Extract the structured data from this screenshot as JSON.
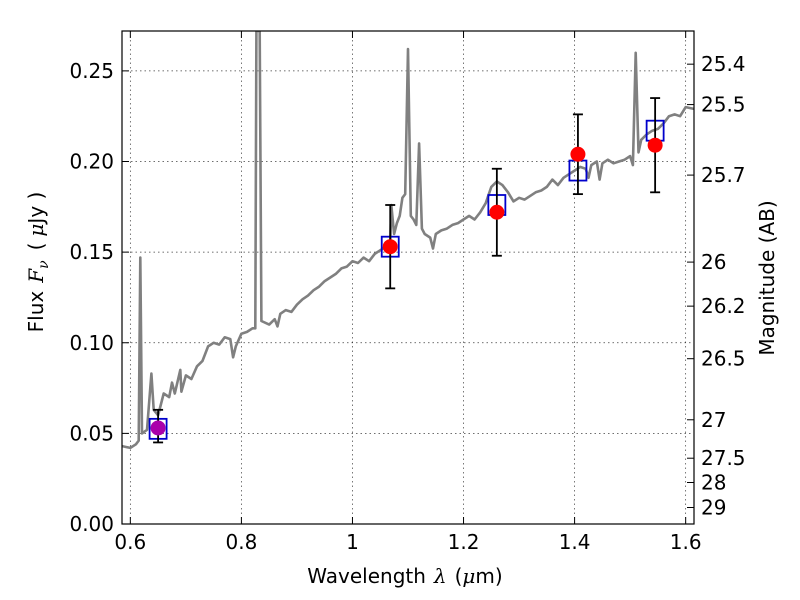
{
  "chart_data": {
    "type": "line",
    "xlabel_text": "Wavelength",
    "xlabel_symbol": "λ",
    "xlabel_unit_open": "(",
    "xlabel_unit_mu": "μ",
    "xlabel_unit_rest": "m)",
    "ylabel_text": "Flux",
    "ylabel_symbol": "F",
    "ylabel_sub": "ν",
    "ylabel_unit_open": "(",
    "ylabel_unit_mu": "μ",
    "ylabel_unit_rest": "Jy )",
    "ylabel_right": "Magnitude (AB)",
    "xlim": [
      0.585,
      1.615
    ],
    "ylim": [
      0.0,
      0.272
    ],
    "grid": true,
    "x_ticks": [
      {
        "value": 0.6,
        "label": "0.6"
      },
      {
        "value": 0.8,
        "label": "0.8"
      },
      {
        "value": 1.0,
        "label": "1"
      },
      {
        "value": 1.2,
        "label": "1.2"
      },
      {
        "value": 1.4,
        "label": "1.4"
      },
      {
        "value": 1.6,
        "label": "1.6"
      }
    ],
    "y_ticks": [
      {
        "value": 0.0,
        "label": "0.00"
      },
      {
        "value": 0.05,
        "label": "0.05"
      },
      {
        "value": 0.1,
        "label": "0.10"
      },
      {
        "value": 0.15,
        "label": "0.15"
      },
      {
        "value": 0.2,
        "label": "0.20"
      },
      {
        "value": 0.25,
        "label": "0.25"
      }
    ],
    "right_ticks": [
      {
        "flux": 0.2537,
        "label": "25.4"
      },
      {
        "flux": 0.2314,
        "label": "25.5"
      },
      {
        "flux": 0.1925,
        "label": "25.7"
      },
      {
        "flux": 0.1445,
        "label": "26"
      },
      {
        "flux": 0.1202,
        "label": "26.2"
      },
      {
        "flux": 0.0912,
        "label": "26.5"
      },
      {
        "flux": 0.0575,
        "label": "27"
      },
      {
        "flux": 0.0363,
        "label": "27.5"
      },
      {
        "flux": 0.0229,
        "label": "28"
      },
      {
        "flux": 0.0091,
        "label": "29"
      }
    ],
    "series": [
      {
        "color": "#808080",
        "points": [
          [
            0.585,
            0.043
          ],
          [
            0.6,
            0.042
          ],
          [
            0.61,
            0.044
          ],
          [
            0.615,
            0.046
          ],
          [
            0.618,
            0.147
          ],
          [
            0.621,
            0.05
          ],
          [
            0.63,
            0.052
          ],
          [
            0.638,
            0.083
          ],
          [
            0.642,
            0.063
          ],
          [
            0.65,
            0.06
          ],
          [
            0.66,
            0.072
          ],
          [
            0.67,
            0.07
          ],
          [
            0.675,
            0.078
          ],
          [
            0.68,
            0.072
          ],
          [
            0.69,
            0.085
          ],
          [
            0.692,
            0.073
          ],
          [
            0.7,
            0.082
          ],
          [
            0.71,
            0.08
          ],
          [
            0.72,
            0.087
          ],
          [
            0.73,
            0.09
          ],
          [
            0.74,
            0.098
          ],
          [
            0.75,
            0.1
          ],
          [
            0.76,
            0.099
          ],
          [
            0.77,
            0.103
          ],
          [
            0.78,
            0.102
          ],
          [
            0.785,
            0.092
          ],
          [
            0.79,
            0.098
          ],
          [
            0.8,
            0.105
          ],
          [
            0.81,
            0.106
          ],
          [
            0.82,
            0.108
          ],
          [
            0.825,
            0.108
          ],
          [
            0.827,
            0.272
          ],
          [
            0.833,
            0.272
          ],
          [
            0.836,
            0.112
          ],
          [
            0.85,
            0.11
          ],
          [
            0.86,
            0.113
          ],
          [
            0.865,
            0.109
          ],
          [
            0.87,
            0.116
          ],
          [
            0.88,
            0.118
          ],
          [
            0.89,
            0.117
          ],
          [
            0.9,
            0.121
          ],
          [
            0.91,
            0.124
          ],
          [
            0.92,
            0.126
          ],
          [
            0.93,
            0.129
          ],
          [
            0.94,
            0.131
          ],
          [
            0.95,
            0.134
          ],
          [
            0.96,
            0.136
          ],
          [
            0.97,
            0.138
          ],
          [
            0.98,
            0.141
          ],
          [
            0.99,
            0.142
          ],
          [
            1.0,
            0.145
          ],
          [
            1.01,
            0.144
          ],
          [
            1.02,
            0.147
          ],
          [
            1.03,
            0.145
          ],
          [
            1.04,
            0.149
          ],
          [
            1.05,
            0.151
          ],
          [
            1.06,
            0.153
          ],
          [
            1.068,
            0.154
          ],
          [
            1.07,
            0.176
          ],
          [
            1.075,
            0.16
          ],
          [
            1.08,
            0.166
          ],
          [
            1.085,
            0.17
          ],
          [
            1.09,
            0.18
          ],
          [
            1.095,
            0.182
          ],
          [
            1.1,
            0.262
          ],
          [
            1.105,
            0.17
          ],
          [
            1.11,
            0.168
          ],
          [
            1.115,
            0.165
          ],
          [
            1.12,
            0.21
          ],
          [
            1.125,
            0.163
          ],
          [
            1.13,
            0.16
          ],
          [
            1.14,
            0.158
          ],
          [
            1.145,
            0.152
          ],
          [
            1.15,
            0.16
          ],
          [
            1.16,
            0.162
          ],
          [
            1.17,
            0.163
          ],
          [
            1.18,
            0.165
          ],
          [
            1.19,
            0.166
          ],
          [
            1.2,
            0.168
          ],
          [
            1.21,
            0.17
          ],
          [
            1.22,
            0.168
          ],
          [
            1.23,
            0.172
          ],
          [
            1.24,
            0.177
          ],
          [
            1.25,
            0.186
          ],
          [
            1.26,
            0.189
          ],
          [
            1.27,
            0.187
          ],
          [
            1.28,
            0.183
          ],
          [
            1.29,
            0.178
          ],
          [
            1.3,
            0.18
          ],
          [
            1.31,
            0.179
          ],
          [
            1.32,
            0.181
          ],
          [
            1.33,
            0.183
          ],
          [
            1.34,
            0.184
          ],
          [
            1.35,
            0.186
          ],
          [
            1.36,
            0.19
          ],
          [
            1.37,
            0.187
          ],
          [
            1.38,
            0.191
          ],
          [
            1.39,
            0.193
          ],
          [
            1.4,
            0.195
          ],
          [
            1.41,
            0.197
          ],
          [
            1.42,
            0.196
          ],
          [
            1.425,
            0.191
          ],
          [
            1.43,
            0.198
          ],
          [
            1.44,
            0.2
          ],
          [
            1.445,
            0.19
          ],
          [
            1.45,
            0.199
          ],
          [
            1.46,
            0.201
          ],
          [
            1.47,
            0.199
          ],
          [
            1.48,
            0.2
          ],
          [
            1.49,
            0.201
          ],
          [
            1.5,
            0.203
          ],
          [
            1.505,
            0.198
          ],
          [
            1.51,
            0.26
          ],
          [
            1.515,
            0.205
          ],
          [
            1.52,
            0.212
          ],
          [
            1.53,
            0.215
          ],
          [
            1.54,
            0.217
          ],
          [
            1.55,
            0.218
          ],
          [
            1.56,
            0.221
          ],
          [
            1.57,
            0.225
          ],
          [
            1.58,
            0.226
          ],
          [
            1.59,
            0.225
          ],
          [
            1.6,
            0.23
          ],
          [
            1.615,
            0.229
          ]
        ]
      }
    ],
    "model_boxes": {
      "color": "#0000cc",
      "points": [
        {
          "x": 0.65,
          "y": 0.0525
        },
        {
          "x": 1.068,
          "y": 0.153
        },
        {
          "x": 1.26,
          "y": 0.176
        },
        {
          "x": 1.406,
          "y": 0.195
        },
        {
          "x": 1.545,
          "y": 0.217
        }
      ]
    },
    "observations": {
      "color": "#ff0000",
      "points": [
        {
          "x": 0.65,
          "y": 0.053,
          "err_low": 0.008,
          "err_high": 0.01,
          "color": "#aa00aa"
        },
        {
          "x": 1.068,
          "y": 0.153,
          "err_low": 0.023,
          "err_high": 0.023
        },
        {
          "x": 1.26,
          "y": 0.172,
          "err_low": 0.024,
          "err_high": 0.024
        },
        {
          "x": 1.406,
          "y": 0.204,
          "err_low": 0.022,
          "err_high": 0.022
        },
        {
          "x": 1.545,
          "y": 0.209,
          "err_low": 0.026,
          "err_high": 0.026
        }
      ]
    }
  }
}
